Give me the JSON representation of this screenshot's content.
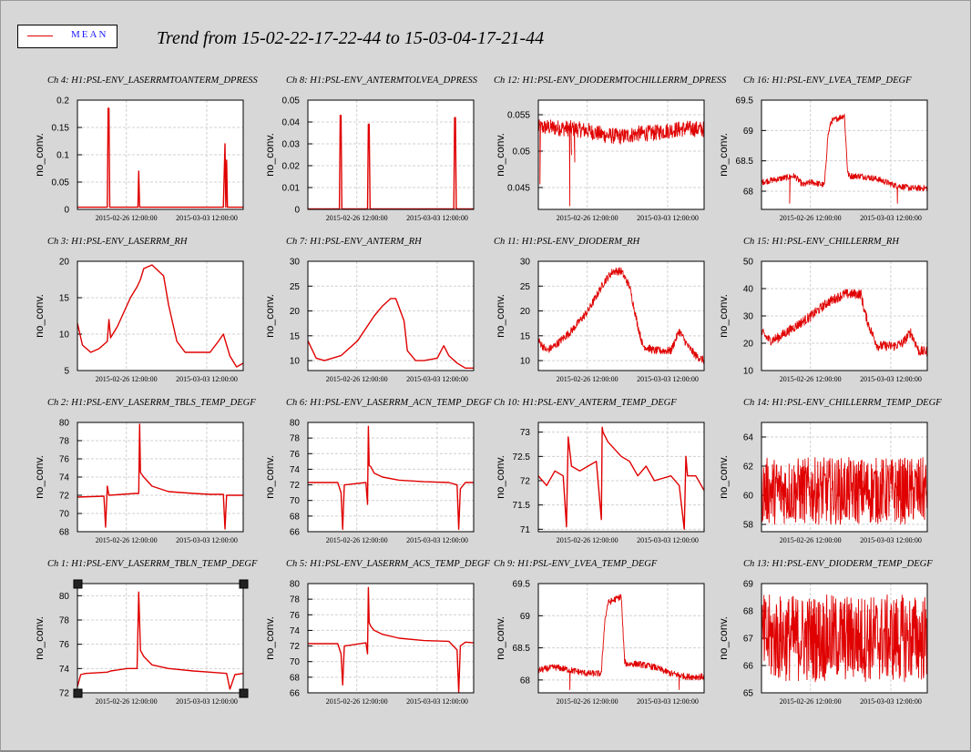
{
  "window": {
    "title": "Trend from 15-02-22-17-22-44 to 15-03-04-17-21-44"
  },
  "legend": {
    "label": "MEAN",
    "color": "#e00000"
  },
  "style": {
    "line_color": "#e00000",
    "grid_color": "#d0d0d0",
    "bg_color": "#d7d7d7"
  },
  "chart_data": [
    {
      "type": "line",
      "title": "Ch 4: H1:PSL-ENV_LASERRMTOANTERM_DPRESS",
      "ylabel": "no_conv.",
      "yticks": [
        "0",
        "0.05",
        "0.1",
        "0.15",
        "0.2"
      ],
      "ylim": [
        0,
        0.2
      ],
      "xticks": [
        "2015-02-26 12:00:00",
        "2015-03-03 12:00:00"
      ],
      "series": [
        {
          "x": [
            0,
            0.17,
            0.18,
            0.185,
            0.19,
            0.195,
            0.197,
            0.3,
            0.35,
            0.365,
            0.37,
            0.375,
            0.38,
            0.5,
            0.6,
            0.7,
            0.8,
            0.88,
            0.89,
            0.895,
            0.9,
            0.905,
            0.91,
            1
          ],
          "values": [
            0.004,
            0.004,
            0.004,
            0.185,
            0.185,
            0.004,
            0.004,
            0.004,
            0.004,
            0.004,
            0.07,
            0.004,
            0.004,
            0.004,
            0.004,
            0.004,
            0.004,
            0.004,
            0.12,
            0.004,
            0.09,
            0.004,
            0.004,
            0.004
          ]
        }
      ]
    },
    {
      "type": "line",
      "title": "Ch 8: H1:PSL-ENV_ANTERMTOLVEA_DPRESS",
      "ylabel": "no_conv.",
      "yticks": [
        "0",
        "0.01",
        "0.02",
        "0.03",
        "0.04",
        "0.05"
      ],
      "ylim": [
        0,
        0.05
      ],
      "xticks": [
        "2015-02-26 12:00:00",
        "2015-03-03 12:00:00"
      ],
      "series": [
        {
          "x": [
            0,
            0.19,
            0.195,
            0.2,
            0.205,
            0.36,
            0.365,
            0.37,
            0.375,
            0.88,
            0.885,
            0.89,
            0.895,
            1
          ],
          "values": [
            0,
            0,
            0.043,
            0.043,
            0,
            0,
            0.039,
            0.039,
            0,
            0,
            0.042,
            0.042,
            0,
            0
          ]
        }
      ]
    },
    {
      "type": "line",
      "title": "Ch 12: H1:PSL-ENV_DIODERMTOCHILLERRM_DPRESS",
      "ylabel": "no_conv.",
      "yticks": [
        "0.045",
        "0.05",
        "0.055"
      ],
      "ylim": [
        0.042,
        0.057
      ],
      "xticks": [
        "2015-02-26 12:00:00",
        "2015-03-03 12:00:00"
      ],
      "series": [
        {
          "noisy": true,
          "x": [
            0,
            0.05,
            0.1,
            0.2,
            0.3,
            0.4,
            0.5,
            0.6,
            0.7,
            0.8,
            0.9,
            1
          ],
          "values": [
            0.0532,
            0.0533,
            0.0532,
            0.0531,
            0.0528,
            0.0522,
            0.052,
            0.0524,
            0.0525,
            0.0529,
            0.0531,
            0.053
          ],
          "amp": 0.0011,
          "spikes": [
            [
              0.01,
              0.0455
            ],
            [
              0.19,
              0.0425
            ],
            [
              0.22,
              0.0485
            ],
            [
              0.2,
              0.0495
            ]
          ]
        }
      ]
    },
    {
      "type": "line",
      "title": "Ch 16: H1:PSL-ENV_LVEA_TEMP_DEGF",
      "ylabel": "no_conv.",
      "yticks": [
        "68",
        "68.5",
        "69",
        "69.5"
      ],
      "ylim": [
        67.7,
        69.5
      ],
      "xticks": [
        "2015-02-26 12:00:00",
        "2015-03-03 12:00:00"
      ],
      "series": [
        {
          "noisy": true,
          "x": [
            0,
            0.1,
            0.2,
            0.25,
            0.3,
            0.38,
            0.4,
            0.42,
            0.5,
            0.52,
            0.53,
            0.6,
            0.7,
            0.8,
            0.9,
            1
          ],
          "values": [
            68.15,
            68.2,
            68.25,
            68.1,
            68.15,
            68.1,
            68.9,
            69.15,
            69.25,
            68.3,
            68.25,
            68.25,
            68.2,
            68.1,
            68.05,
            68.05
          ],
          "amp": 0.05,
          "spikes": [
            [
              0.17,
              67.8
            ],
            [
              0.82,
              67.8
            ]
          ]
        }
      ]
    },
    {
      "type": "line",
      "title": "Ch 3: H1:PSL-ENV_LASERRM_RH",
      "ylabel": "no_conv.",
      "yticks": [
        "5",
        "10",
        "15",
        "20"
      ],
      "ylim": [
        5,
        20
      ],
      "xticks": [
        "2015-02-26 12:00:00",
        "2015-03-03 12:00:00"
      ],
      "series": [
        {
          "x": [
            0,
            0.03,
            0.08,
            0.13,
            0.18,
            0.19,
            0.2,
            0.24,
            0.32,
            0.36,
            0.38,
            0.4,
            0.45,
            0.52,
            0.55,
            0.6,
            0.65,
            0.7,
            0.8,
            0.85,
            0.88,
            0.92,
            0.96,
            1
          ],
          "values": [
            11.5,
            8.5,
            7.5,
            8,
            9,
            12,
            9.5,
            11,
            15,
            16.5,
            17.5,
            19,
            19.5,
            18,
            14,
            9,
            7.5,
            7.5,
            7.5,
            9,
            10,
            7,
            5.5,
            6
          ]
        }
      ]
    },
    {
      "type": "line",
      "title": "Ch 7: H1:PSL-ENV_ANTERM_RH",
      "ylabel": "no_conv.",
      "yticks": [
        "10",
        "15",
        "20",
        "25",
        "30"
      ],
      "ylim": [
        8,
        30
      ],
      "xticks": [
        "2015-02-26 12:00:00",
        "2015-03-03 12:00:00"
      ],
      "series": [
        {
          "x": [
            0,
            0.05,
            0.1,
            0.2,
            0.3,
            0.4,
            0.45,
            0.5,
            0.53,
            0.58,
            0.6,
            0.65,
            0.7,
            0.78,
            0.82,
            0.85,
            0.9,
            0.95,
            1
          ],
          "values": [
            14,
            10.5,
            10,
            11,
            14,
            19,
            21,
            22.5,
            22.5,
            18,
            12,
            10,
            10,
            10.5,
            13,
            11,
            9.5,
            8.5,
            8.5
          ]
        }
      ]
    },
    {
      "type": "line",
      "title": "Ch 11: H1:PSL-ENV_DIODERM_RH",
      "ylabel": "no_conv.",
      "yticks": [
        "10",
        "15",
        "20",
        "25",
        "30"
      ],
      "ylim": [
        8,
        30
      ],
      "xticks": [
        "2015-02-26 12:00:00",
        "2015-03-03 12:00:00"
      ],
      "series": [
        {
          "noisy": true,
          "x": [
            0,
            0.05,
            0.1,
            0.2,
            0.3,
            0.4,
            0.45,
            0.5,
            0.55,
            0.6,
            0.63,
            0.7,
            0.8,
            0.85,
            0.9,
            0.95,
            1
          ],
          "values": [
            14,
            12,
            13,
            16,
            20,
            26,
            28,
            28,
            25,
            17,
            13,
            12,
            12,
            16,
            13,
            11,
            10
          ],
          "amp": 0.8
        }
      ]
    },
    {
      "type": "line",
      "title": "Ch 15: H1:PSL-ENV_CHILLERRM_RH",
      "ylabel": "no_conv.",
      "yticks": [
        "10",
        "20",
        "30",
        "40",
        "50"
      ],
      "ylim": [
        10,
        50
      ],
      "xticks": [
        "2015-02-26 12:00:00",
        "2015-03-03 12:00:00"
      ],
      "series": [
        {
          "noisy": true,
          "x": [
            0,
            0.05,
            0.1,
            0.2,
            0.3,
            0.4,
            0.5,
            0.6,
            0.62,
            0.65,
            0.7,
            0.8,
            0.85,
            0.9,
            0.95,
            1
          ],
          "values": [
            24,
            21,
            22,
            26,
            30,
            35,
            38,
            38,
            32,
            26,
            19,
            19,
            20,
            24,
            17,
            17
          ],
          "amp": 1.8
        }
      ]
    },
    {
      "type": "line",
      "title": "Ch 2: H1:PSL-ENV_LASERRM_TBLS_TEMP_DEGF",
      "ylabel": "no_conv.",
      "yticks": [
        "68",
        "70",
        "72",
        "74",
        "76",
        "78",
        "80"
      ],
      "ylim": [
        68,
        80
      ],
      "xticks": [
        "2015-02-26 12:00:00",
        "2015-03-03 12:00:00"
      ],
      "series": [
        {
          "x": [
            0,
            0.16,
            0.17,
            0.18,
            0.19,
            0.35,
            0.37,
            0.375,
            0.38,
            0.4,
            0.45,
            0.55,
            0.7,
            0.8,
            0.88,
            0.89,
            0.9,
            0.92,
            1
          ],
          "values": [
            71.8,
            71.9,
            68.5,
            73,
            72,
            72.2,
            72.2,
            79.8,
            74.5,
            74,
            73,
            72.4,
            72.2,
            72.1,
            72.1,
            68.3,
            72,
            72,
            72
          ]
        }
      ]
    },
    {
      "type": "line",
      "title": "Ch 6: H1:PSL-ENV_LASERRM_ACN_TEMP_DEGF",
      "ylabel": "no_conv.",
      "yticks": [
        "66",
        "68",
        "70",
        "72",
        "74",
        "76",
        "78",
        "80"
      ],
      "ylim": [
        66,
        80
      ],
      "xticks": [
        "2015-02-26 12:00:00",
        "2015-03-03 12:00:00"
      ],
      "series": [
        {
          "x": [
            0,
            0.18,
            0.2,
            0.21,
            0.22,
            0.35,
            0.36,
            0.365,
            0.37,
            0.38,
            0.4,
            0.45,
            0.55,
            0.7,
            0.85,
            0.9,
            0.91,
            0.92,
            0.95,
            1
          ],
          "values": [
            72.3,
            72.3,
            71,
            66.3,
            72,
            72.3,
            69.5,
            79.5,
            74.5,
            74.3,
            73.5,
            73,
            72.6,
            72.4,
            72.3,
            72,
            66.3,
            71.5,
            72.3,
            72.3
          ]
        }
      ]
    },
    {
      "type": "line",
      "title": "Ch 10: H1:PSL-ENV_ANTERM_TEMP_DEGF",
      "ylabel": "no_conv.",
      "yticks": [
        "71",
        "71.5",
        "72",
        "72.5",
        "73"
      ],
      "ylim": [
        70.95,
        73.2
      ],
      "xticks": [
        "2015-02-26 12:00:00",
        "2015-03-03 12:00:00"
      ],
      "series": [
        {
          "x": [
            0,
            0.05,
            0.1,
            0.15,
            0.17,
            0.18,
            0.2,
            0.25,
            0.3,
            0.35,
            0.38,
            0.385,
            0.39,
            0.42,
            0.5,
            0.55,
            0.6,
            0.65,
            0.7,
            0.8,
            0.85,
            0.88,
            0.89,
            0.9,
            0.95,
            1
          ],
          "values": [
            72.1,
            71.9,
            72.2,
            72.1,
            71.05,
            72.9,
            72.3,
            72.2,
            72.3,
            72.4,
            71.2,
            73.1,
            73,
            72.8,
            72.5,
            72.4,
            72.1,
            72.3,
            72,
            72.1,
            71.9,
            71,
            72.5,
            72.1,
            72.1,
            71.8
          ]
        }
      ]
    },
    {
      "type": "line",
      "title": "Ch 14: H1:PSL-ENV_CHILLERRM_TEMP_DEGF",
      "ylabel": "no_conv.",
      "yticks": [
        "58",
        "60",
        "62",
        "64"
      ],
      "ylim": [
        57.5,
        65
      ],
      "xticks": [
        "2015-02-26 12:00:00",
        "2015-03-03 12:00:00"
      ],
      "series": [
        {
          "noisy": true,
          "x": [
            0,
            0.5,
            1
          ],
          "values": [
            60.3,
            60.3,
            60.3
          ],
          "amp": 2.3
        }
      ]
    },
    {
      "type": "line",
      "title": "Ch 1: H1:PSL-ENV_LASERRM_TBLN_TEMP_DEGF",
      "ylabel": "no_conv.",
      "yticks": [
        "72",
        "74",
        "76",
        "78",
        "80"
      ],
      "ylim": [
        72,
        81
      ],
      "xticks": [
        "2015-02-26 12:00:00",
        "2015-03-03 12:00:00"
      ],
      "series": [
        {
          "x": [
            0,
            0.02,
            0.05,
            0.18,
            0.2,
            0.3,
            0.36,
            0.37,
            0.38,
            0.4,
            0.45,
            0.55,
            0.7,
            0.8,
            0.9,
            0.92,
            0.95,
            1
          ],
          "values": [
            72.5,
            73.5,
            73.6,
            73.7,
            73.8,
            74,
            74,
            80.3,
            75.5,
            75,
            74.3,
            74,
            73.8,
            73.7,
            73.6,
            72.3,
            73.5,
            73.6
          ]
        }
      ]
    },
    {
      "type": "line",
      "title": "Ch 5: H1:PSL-ENV_LASERRM_ACS_TEMP_DEGF",
      "ylabel": "no_conv.",
      "yticks": [
        "66",
        "68",
        "70",
        "72",
        "74",
        "76",
        "78",
        "80"
      ],
      "ylim": [
        66,
        80
      ],
      "xticks": [
        "2015-02-26 12:00:00",
        "2015-03-03 12:00:00"
      ],
      "series": [
        {
          "x": [
            0,
            0.18,
            0.2,
            0.21,
            0.22,
            0.35,
            0.36,
            0.365,
            0.37,
            0.38,
            0.4,
            0.45,
            0.55,
            0.7,
            0.85,
            0.9,
            0.91,
            0.92,
            0.95,
            1
          ],
          "values": [
            72.3,
            72.3,
            71,
            67,
            72,
            72.4,
            71,
            79.5,
            75,
            74.5,
            74,
            73.5,
            73,
            72.7,
            72.6,
            71.5,
            66,
            72,
            72.5,
            72.4
          ]
        }
      ]
    },
    {
      "type": "line",
      "title": "Ch 9: H1:PSL-ENV_LVEA_TEMP_DEGF",
      "ylabel": "no_conv.",
      "yticks": [
        "68",
        "68.5",
        "69",
        "69.5"
      ],
      "ylim": [
        67.8,
        69.5
      ],
      "xticks": [
        "2015-02-26 12:00:00",
        "2015-03-03 12:00:00"
      ],
      "series": [
        {
          "noisy": true,
          "x": [
            0,
            0.1,
            0.2,
            0.3,
            0.38,
            0.4,
            0.42,
            0.5,
            0.52,
            0.53,
            0.6,
            0.7,
            0.8,
            0.9,
            1
          ],
          "values": [
            68.15,
            68.2,
            68.15,
            68.1,
            68.1,
            68.9,
            69.2,
            69.3,
            68.3,
            68.25,
            68.25,
            68.2,
            68.1,
            68.05,
            68.05
          ],
          "amp": 0.05,
          "spikes": [
            [
              0.19,
              67.85
            ],
            [
              0.85,
              67.85
            ]
          ]
        }
      ]
    },
    {
      "type": "line",
      "title": "Ch 13: H1:PSL-ENV_DIODERM_TEMP_DEGF",
      "ylabel": "no_conv.",
      "yticks": [
        "65",
        "66",
        "67",
        "68",
        "69"
      ],
      "ylim": [
        65,
        69
      ],
      "xticks": [
        "2015-02-26 12:00:00",
        "2015-03-03 12:00:00"
      ],
      "series": [
        {
          "noisy": true,
          "x": [
            0,
            0.5,
            1
          ],
          "values": [
            67,
            67,
            67
          ],
          "amp": 1.6
        }
      ]
    }
  ]
}
